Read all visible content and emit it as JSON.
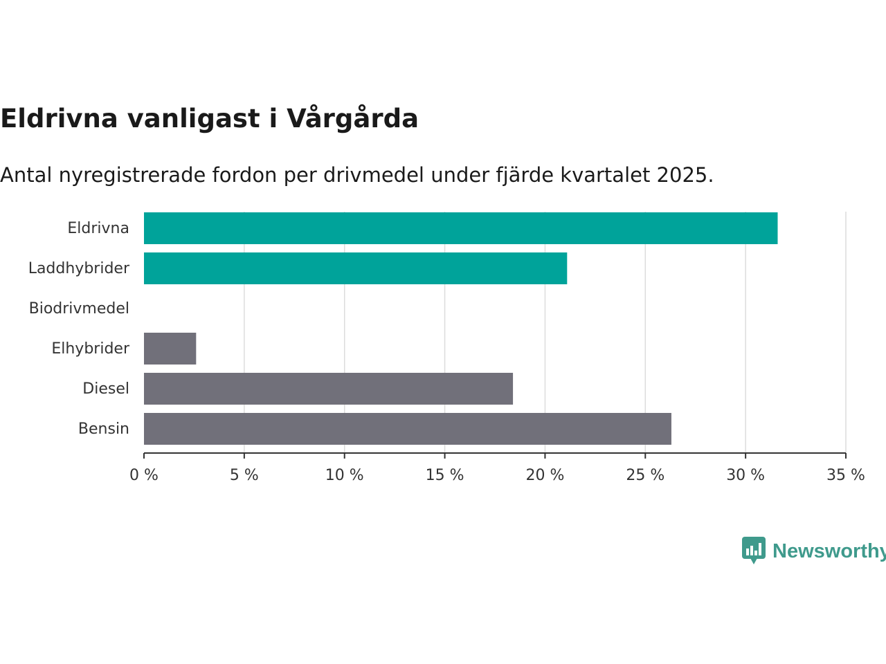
{
  "header": {
    "title": "Eldrivna vanligast i Vårgårda",
    "subtitle": "Antal nyregistrerade fordon per drivmedel under fjärde kvartalet 2025."
  },
  "brand": {
    "name": "Newsworthy",
    "color": "#3f9a8c"
  },
  "chart_data": {
    "type": "bar",
    "orientation": "horizontal",
    "title": "Eldrivna vanligast i Vårgårda",
    "subtitle": "Antal nyregistrerade fordon per drivmedel under fjärde kvartalet 2025.",
    "xlabel": "",
    "ylabel": "",
    "xlim": [
      0,
      35
    ],
    "x_ticks": [
      0,
      5,
      10,
      15,
      20,
      25,
      30,
      35
    ],
    "tick_suffix": " %",
    "grid": true,
    "categories": [
      "Eldrivna",
      "Laddhybrider",
      "Biodrivmedel",
      "Elhybrider",
      "Diesel",
      "Bensin"
    ],
    "values": [
      31.6,
      21.1,
      0,
      2.6,
      18.4,
      26.3
    ],
    "colors": [
      "#00a39a",
      "#00a39a",
      "#71707a",
      "#71707a",
      "#71707a",
      "#71707a"
    ]
  }
}
